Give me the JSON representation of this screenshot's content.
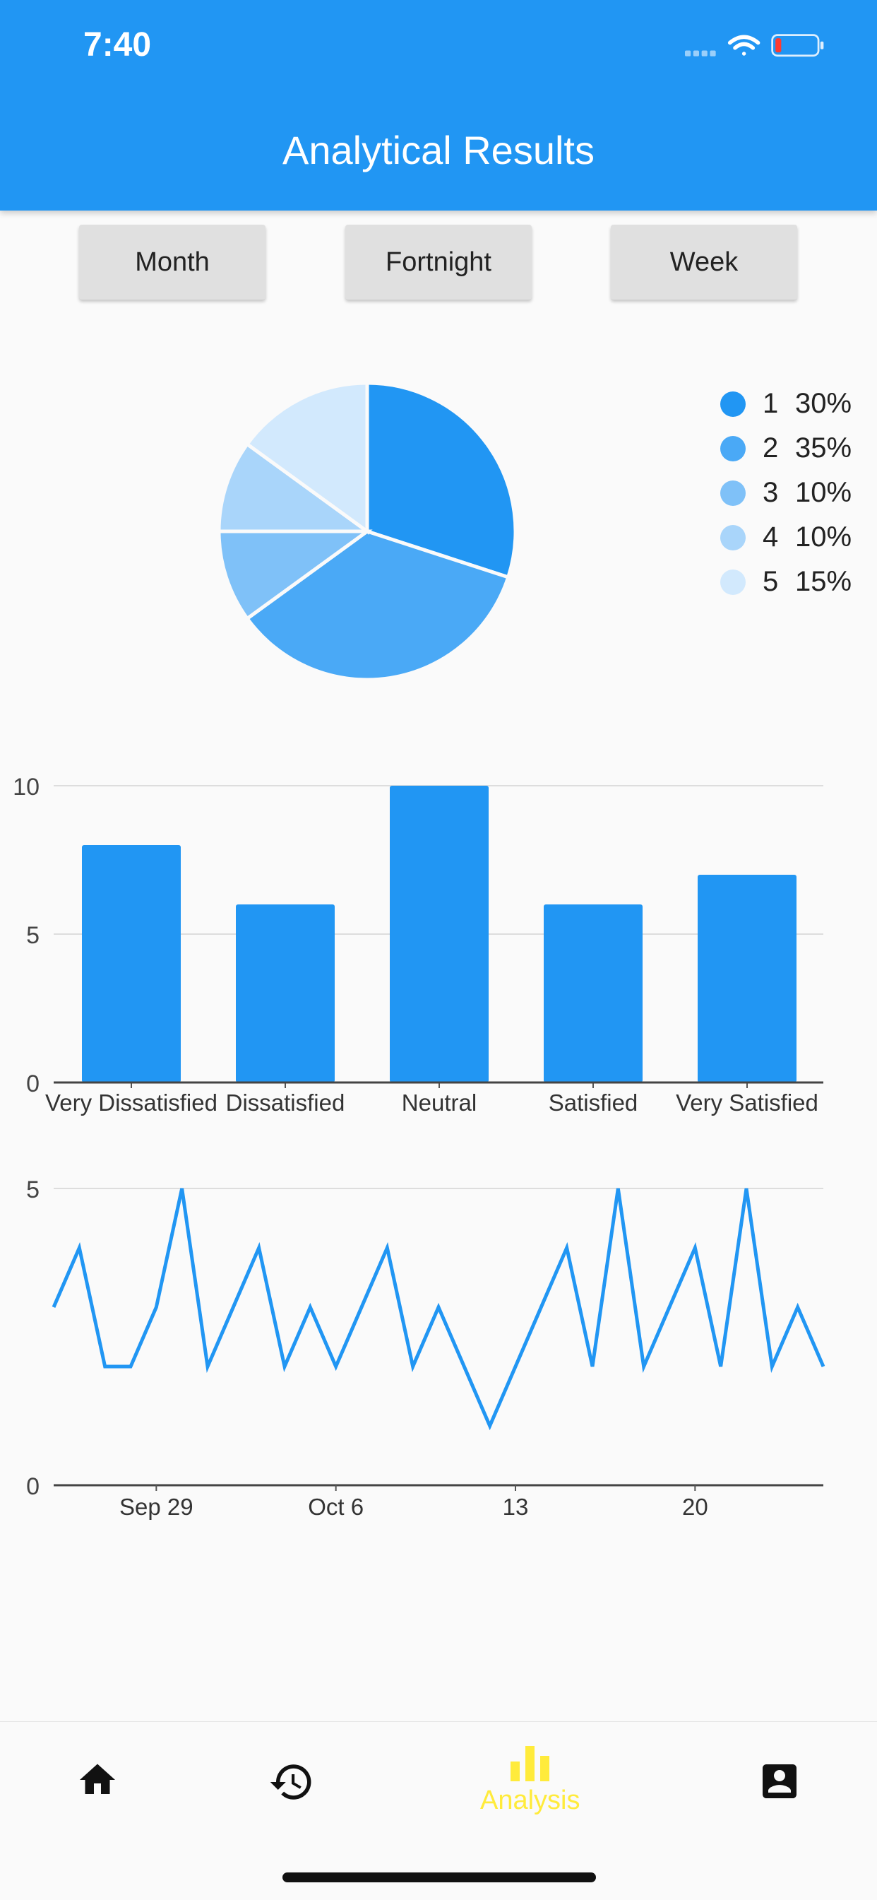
{
  "status_bar": {
    "time": "7:40",
    "icons": [
      "signal-dots-icon",
      "wifi-icon",
      "battery-low-icon"
    ]
  },
  "app_bar": {
    "title": "Analytical Results"
  },
  "period_buttons": [
    "Month",
    "Fortnight",
    "Week"
  ],
  "colors": {
    "primary": "#2196f3",
    "accent": "#ffeb3b",
    "pie": [
      "#2196f3",
      "#4aa9f6",
      "#7fc1f8",
      "#a9d5fa",
      "#d2e9fd"
    ]
  },
  "chart_data": [
    {
      "type": "pie",
      "categories": [
        "1",
        "2",
        "3",
        "4",
        "5"
      ],
      "values": [
        30,
        35,
        10,
        10,
        15
      ],
      "labels": [
        "30%",
        "35%",
        "10%",
        "10%",
        "15%"
      ],
      "legend": "right"
    },
    {
      "type": "bar",
      "categories": [
        "Very Dissatisfied",
        "Dissatisfied",
        "Neutral",
        "Satisfied",
        "Very Satisfied"
      ],
      "values": [
        8,
        6,
        10,
        6,
        7
      ],
      "ylim": [
        0,
        10
      ],
      "y_ticks": [
        "0",
        "5",
        "10"
      ],
      "grid": true
    },
    {
      "type": "line",
      "x": [
        "Sep 25",
        "Sep 26",
        "Sep 27",
        "Sep 28",
        "Sep 29",
        "Sep 30",
        "Oct 1",
        "Oct 2",
        "Oct 3",
        "Oct 4",
        "Oct 5",
        "Oct 6",
        "Oct 7",
        "Oct 8",
        "Oct 9",
        "Oct 10",
        "Oct 11",
        "Oct 12",
        "Oct 13",
        "Oct 14",
        "Oct 15",
        "Oct 16",
        "Oct 17",
        "Oct 18",
        "Oct 19",
        "Oct 20",
        "Oct 21",
        "Oct 22",
        "Oct 23",
        "Oct 24",
        "Oct 25"
      ],
      "values": [
        3,
        4,
        2,
        2,
        3,
        5,
        2,
        3,
        4,
        2,
        3,
        2,
        3,
        4,
        2,
        3,
        2,
        1,
        2,
        3,
        4,
        2,
        5,
        2,
        3,
        4,
        2,
        5,
        2,
        3,
        2
      ],
      "x_tick_labels": [
        "Sep 29",
        "Oct 6",
        "13",
        "20"
      ],
      "x_tick_positions": [
        "Sep 29",
        "Oct 6",
        "Oct 13",
        "Oct 20"
      ],
      "ylim": [
        0,
        5
      ],
      "y_ticks": [
        "0",
        "5"
      ],
      "grid": true
    }
  ],
  "bottom_nav": {
    "items": [
      {
        "icon": "home-icon",
        "label": ""
      },
      {
        "icon": "history-icon",
        "label": ""
      },
      {
        "icon": "bar-chart-icon",
        "label": "Analysis",
        "active": true
      },
      {
        "icon": "account-box-icon",
        "label": ""
      }
    ]
  }
}
